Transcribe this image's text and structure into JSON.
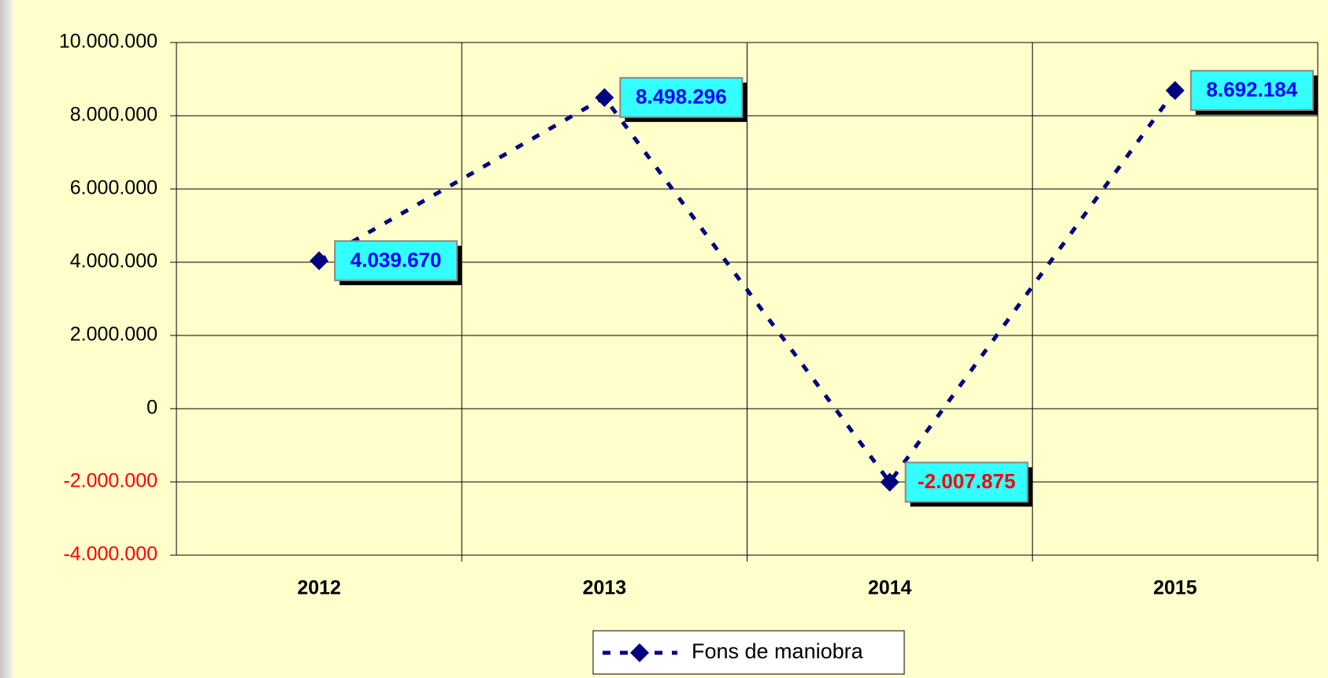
{
  "chart_data": {
    "type": "line",
    "categories": [
      "2012",
      "2013",
      "2014",
      "2015"
    ],
    "series": [
      {
        "name": "Fons de maniobra",
        "color": "#000080",
        "values": [
          4039670,
          8498296,
          -2007875,
          8692184
        ],
        "value_labels": [
          "4.039.670",
          "8.498.296",
          "-2.007.875",
          "8.692.184"
        ]
      }
    ],
    "ylim": [
      -4000000,
      10000000
    ],
    "yticks": [
      {
        "value": -4000000,
        "label": "-4.000.000"
      },
      {
        "value": -2000000,
        "label": "-2.000.000"
      },
      0,
      {
        "value": 2000000,
        "label": "2.000.000"
      },
      {
        "value": 4000000,
        "label": "4.000.000"
      },
      {
        "value": 6000000,
        "label": "6.000.000"
      },
      {
        "value": 8000000,
        "label": "8.000.000"
      },
      {
        "value": 10000000,
        "label": "10.000.000"
      }
    ],
    "grid": true,
    "legend": "bottom",
    "negative_color": "#ff0000",
    "label_color": "#0000ff",
    "label_box_color": "#33ffff"
  }
}
